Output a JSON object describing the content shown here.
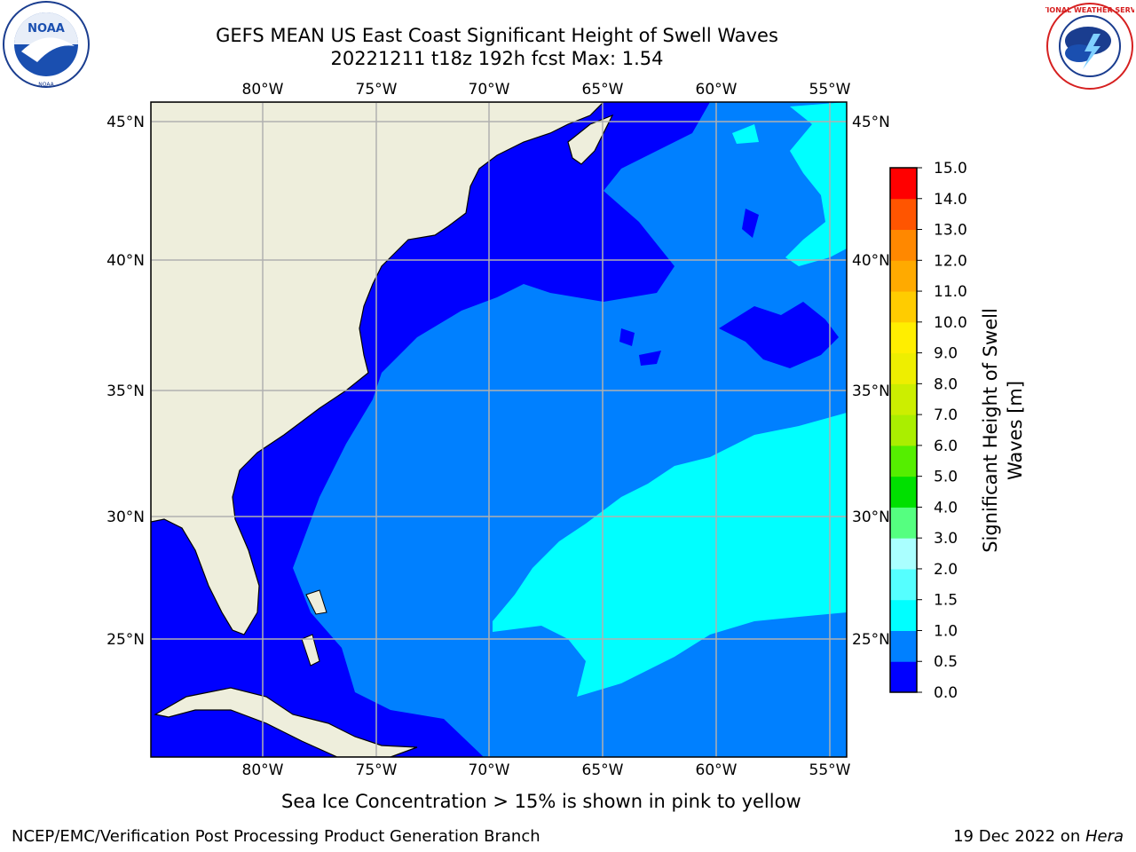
{
  "header": {
    "title_line1": "GEFS MEAN US East Coast Significant Height of Swell Waves",
    "title_line2": "20221211 t18z 192h fcst   Max: 1.54"
  },
  "logos": {
    "left_name": "NOAA",
    "right_name": "NATIONAL WEATHER SERVICE"
  },
  "map": {
    "lon_labels": [
      "80°W",
      "75°W",
      "70°W",
      "65°W",
      "60°W",
      "55°W"
    ],
    "lat_labels": [
      "45°N",
      "40°N",
      "35°N",
      "30°N",
      "25°N"
    ],
    "colors": {
      "land": "#eeeedc",
      "ocean_low": "#0000ff",
      "ocean_mid": "#0080ff",
      "ocean_high": "#00ffff",
      "grid": "#b0b0b0"
    }
  },
  "colorbar": {
    "label_line1": "Significant Height of Swell",
    "label_line2": "Waves [m]",
    "ticks": [
      "0.0",
      "0.5",
      "1.0",
      "1.5",
      "2.0",
      "3.0",
      "4.0",
      "5.0",
      "6.0",
      "7.0",
      "8.0",
      "9.0",
      "10.0",
      "11.0",
      "12.0",
      "13.0",
      "14.0",
      "15.0"
    ],
    "colors": [
      "#0000ff",
      "#0080ff",
      "#00ffff",
      "#55ffff",
      "#aaffff",
      "#55ff80",
      "#00e000",
      "#55ee00",
      "#aaee00",
      "#ccee00",
      "#eeee00",
      "#ffee00",
      "#ffcc00",
      "#ffaa00",
      "#ff8800",
      "#ff5500",
      "#ff0000"
    ]
  },
  "caption": "Sea Ice Concentration > 15% is shown in pink to yellow",
  "footer": {
    "left": "NCEP/EMC/Verification Post Processing Product Generation Branch",
    "right_date": "19 Dec 2022 on ",
    "right_host": "Hera"
  }
}
